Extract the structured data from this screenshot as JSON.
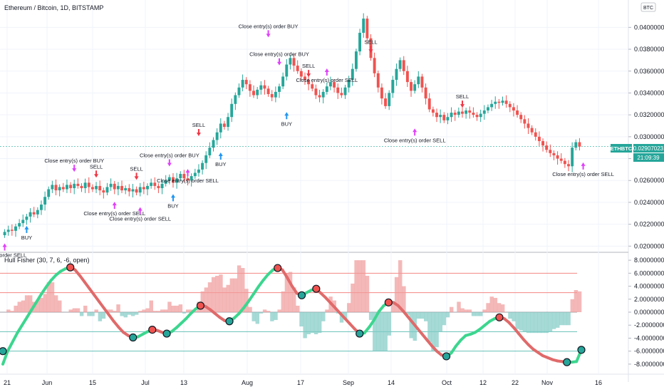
{
  "title": "Ethereum / Bitcoin, 1D, BITSTAMP",
  "corner_label": "BTC",
  "price_badge": {
    "symbol": "ETHBTC",
    "value": "0.02907023",
    "countdown": "21:09:39",
    "color": "#26a69a"
  },
  "indicator_title": "Hull Fisher (30, 7, 6, -6, open)",
  "colors": {
    "up": "#26a69a",
    "down": "#ef5350",
    "fisher_up": "#3cd68f",
    "fisher_down": "#e06a6a",
    "signal_arrow": "#e040fb"
  },
  "chart_data": [
    {
      "type": "candlestick",
      "yticks": [
        "0.04000000",
        "0.03800000",
        "0.03600000",
        "0.03400000",
        "0.03200000",
        "0.03000000",
        "0.02800000",
        "0.02600000",
        "0.02400000",
        "0.02200000",
        "0.02000000"
      ],
      "ylim": [
        0.0195,
        0.0425
      ],
      "xticks": [
        "21",
        "Jun",
        "15",
        "Jul",
        "13",
        "Aug",
        "17",
        "Sep",
        "14",
        "Oct",
        "12",
        "22",
        "Nov",
        "16"
      ],
      "closes": [
        0.0213,
        0.0215,
        0.0214,
        0.0218,
        0.0221,
        0.0224,
        0.0227,
        0.0231,
        0.0229,
        0.0233,
        0.0238,
        0.0245,
        0.0252,
        0.0256,
        0.0251,
        0.0254,
        0.0252,
        0.0256,
        0.0253,
        0.0257,
        0.0255,
        0.0253,
        0.0258,
        0.0254,
        0.0252,
        0.0255,
        0.0251,
        0.0249,
        0.0254,
        0.0257,
        0.0252,
        0.0255,
        0.0251,
        0.0253,
        0.025,
        0.0252,
        0.0249,
        0.0254,
        0.0252,
        0.0255,
        0.0258,
        0.0255,
        0.0253,
        0.0257,
        0.026,
        0.0263,
        0.0258,
        0.0262,
        0.0266,
        0.0262,
        0.026,
        0.0264,
        0.0267,
        0.027,
        0.0276,
        0.0283,
        0.029,
        0.0297,
        0.0304,
        0.0312,
        0.0309,
        0.0318,
        0.033,
        0.0338,
        0.0345,
        0.0352,
        0.0348,
        0.0342,
        0.0338,
        0.0343,
        0.0347,
        0.0344,
        0.0339,
        0.0336,
        0.0341,
        0.0346,
        0.0355,
        0.0366,
        0.0372,
        0.0365,
        0.036,
        0.0355,
        0.0352,
        0.0348,
        0.0344,
        0.0338,
        0.0336,
        0.0341,
        0.0346,
        0.035,
        0.0345,
        0.034,
        0.0338,
        0.0345,
        0.0352,
        0.0362,
        0.0378,
        0.0395,
        0.0408,
        0.039,
        0.0372,
        0.0358,
        0.0345,
        0.0335,
        0.0328,
        0.034,
        0.0352,
        0.0362,
        0.037,
        0.036,
        0.035,
        0.0342,
        0.0348,
        0.0355,
        0.0345,
        0.0335,
        0.0325,
        0.0322,
        0.0318,
        0.032,
        0.0315,
        0.0318,
        0.0322,
        0.032,
        0.0323,
        0.0321,
        0.0324,
        0.0322,
        0.032,
        0.0318,
        0.0321,
        0.0324,
        0.0327,
        0.033,
        0.0332,
        0.0331,
        0.0333,
        0.033,
        0.0327,
        0.0324,
        0.032,
        0.0316,
        0.0312,
        0.0308,
        0.0304,
        0.03,
        0.0296,
        0.0292,
        0.0288,
        0.0285,
        0.0283,
        0.028,
        0.0278,
        0.0275,
        0.0273,
        0.029,
        0.0295,
        0.0291
      ],
      "annotations": [
        {
          "text": "ntry(s) order SELL",
          "i": 0,
          "price": 0.0211,
          "offset": 18,
          "arrow": "up",
          "arrow_color": "#e040fb"
        },
        {
          "text": "BUY",
          "i": 6,
          "price": 0.0227,
          "offset": 18,
          "arrow": "up",
          "arrow_color": "#2196f3"
        },
        {
          "text": "Close entry(s) order BUY",
          "i": 19,
          "price": 0.0262,
          "offset": -14,
          "arrow": "down",
          "arrow_color": "#e040fb"
        },
        {
          "text": "SELL",
          "i": 25,
          "price": 0.0258,
          "offset": -12,
          "arrow": "down",
          "arrow_color": "#f23645"
        },
        {
          "text": "Close entry(s) order SELL",
          "i": 30,
          "price": 0.0249,
          "offset": 18,
          "arrow": "up",
          "arrow_color": "#e040fb"
        },
        {
          "text": "SELL",
          "i": 36,
          "price": 0.0256,
          "offset": -12,
          "arrow": "down",
          "arrow_color": "#f23645"
        },
        {
          "text": "Close entry(s) order SELL",
          "i": 37,
          "price": 0.0248,
          "offset": 24,
          "arrow": "up",
          "arrow_color": "#e040fb"
        },
        {
          "text": "Close entry(s) order BUY",
          "i": 45,
          "price": 0.0267,
          "offset": -14,
          "arrow": "down",
          "arrow_color": "#e040fb"
        },
        {
          "text": "Close entry(s) order SELL",
          "i": 50,
          "price": 0.0262,
          "offset": -8,
          "arrow": "up",
          "arrow_color": "#e040fb"
        },
        {
          "text": "BUY",
          "i": 46,
          "price": 0.0256,
          "offset": 18,
          "arrow": "up",
          "arrow_color": "#2196f3"
        },
        {
          "text": "SELL",
          "i": 53,
          "price": 0.0296,
          "offset": -12,
          "arrow": "down",
          "arrow_color": "#f23645"
        },
        {
          "text": "BUY",
          "i": 59,
          "price": 0.0294,
          "offset": 18,
          "arrow": "up",
          "arrow_color": "#2196f3"
        },
        {
          "text": "Close entry(s) order BUY",
          "i": 72,
          "price": 0.0385,
          "offset": -14,
          "arrow": "down",
          "arrow_color": "#e040fb"
        },
        {
          "text": "Close entry(s) order BUY",
          "i": 75,
          "price": 0.0362,
          "offset": -10,
          "arrow": "down",
          "arrow_color": "#e040fb"
        },
        {
          "text": "BUY",
          "i": 77,
          "price": 0.0331,
          "offset": 18,
          "arrow": "up",
          "arrow_color": "#2196f3"
        },
        {
          "text": "SELL",
          "i": 83,
          "price": 0.035,
          "offset": -12,
          "arrow": "down",
          "arrow_color": "#f23645"
        },
        {
          "text": "Close entry(s) order SELL",
          "i": 88,
          "price": 0.0354,
          "offset": -8,
          "arrow": "up",
          "arrow_color": "#e040fb"
        },
        {
          "text": "SELL",
          "i": 100,
          "price": 0.0372,
          "offset": -12,
          "arrow": "down",
          "arrow_color": "#f23645"
        },
        {
          "text": "Close entry(s) order SELL",
          "i": 112,
          "price": 0.0316,
          "offset": 18,
          "arrow": "up",
          "arrow_color": "#e040fb"
        },
        {
          "text": "SELL",
          "i": 125,
          "price": 0.0322,
          "offset": -12,
          "arrow": "down",
          "arrow_color": "#f23645"
        },
        {
          "text": "Close entry(s) order SELL",
          "i": 158,
          "price": 0.0285,
          "offset": 18,
          "arrow": "up",
          "arrow_color": "#e040fb"
        }
      ]
    },
    {
      "type": "line+area",
      "name": "Hull Fisher (30, 7, 6, -6, open)",
      "yticks": [
        "8.00000000",
        "6.00000000",
        "4.00000000",
        "2.00000000",
        "0.00000000",
        "-2.00000000",
        "-4.00000000",
        "-6.00000000",
        "-8.00000000"
      ],
      "ylim": [
        -9,
        9
      ],
      "levels": [
        {
          "value": 6,
          "color": "#ef5350"
        },
        {
          "value": 3,
          "color": "#ef5350"
        },
        {
          "value": 0,
          "color": "#787b86"
        },
        {
          "value": -3,
          "color": "#26a69a"
        },
        {
          "value": -6,
          "color": "#26a69a"
        }
      ],
      "fisher": [
        -8,
        -6,
        -4.6,
        -3.2,
        -2,
        -0.8,
        0.4,
        1.6,
        2.8,
        3.9,
        4.9,
        5.7,
        6.3,
        6.7,
        6.9,
        6.5,
        5.6,
        4.6,
        3.6,
        2.6,
        1.6,
        0.6,
        -0.4,
        -1.4,
        -2.3,
        -3.1,
        -3.6,
        -3.9,
        -3.8,
        -3.4,
        -3,
        -2.7,
        -2.8,
        -3.1,
        -3.3,
        -3,
        -2.4,
        -1.7,
        -1,
        -0.2,
        0.5,
        1,
        0.9,
        0.4,
        -0.2,
        -0.8,
        -1.3,
        -1.4,
        -0.9,
        -0.2,
        0.7,
        1.7,
        2.8,
        3.9,
        4.9,
        5.8,
        6.5,
        6.8,
        6.5,
        5.3,
        4,
        2.9,
        2.6,
        3,
        3.4,
        3.6,
        2.9,
        2.2,
        1.4,
        0.6,
        -0.2,
        -1,
        -1.8,
        -2.6,
        -3.3,
        -3.2,
        -2.3,
        -1.2,
        0.1,
        1,
        1.5,
        1.5,
        1,
        0.2,
        -0.7,
        -1.6,
        -2.5,
        -3.4,
        -4.3,
        -5.2,
        -6,
        -6.6,
        -6.8,
        -6.3,
        -5.2,
        -4.3,
        -3.6,
        -3.4,
        -3.1,
        -2.6,
        -2,
        -1.4,
        -1,
        -0.8,
        -1,
        -1.6,
        -2.4,
        -3.3,
        -4.2,
        -5,
        -5.7,
        -6.2,
        -6.7,
        -7,
        -7.3,
        -7.5,
        -7.6,
        -7.7,
        -7.7,
        -7.6,
        -5.8
      ]
    }
  ]
}
